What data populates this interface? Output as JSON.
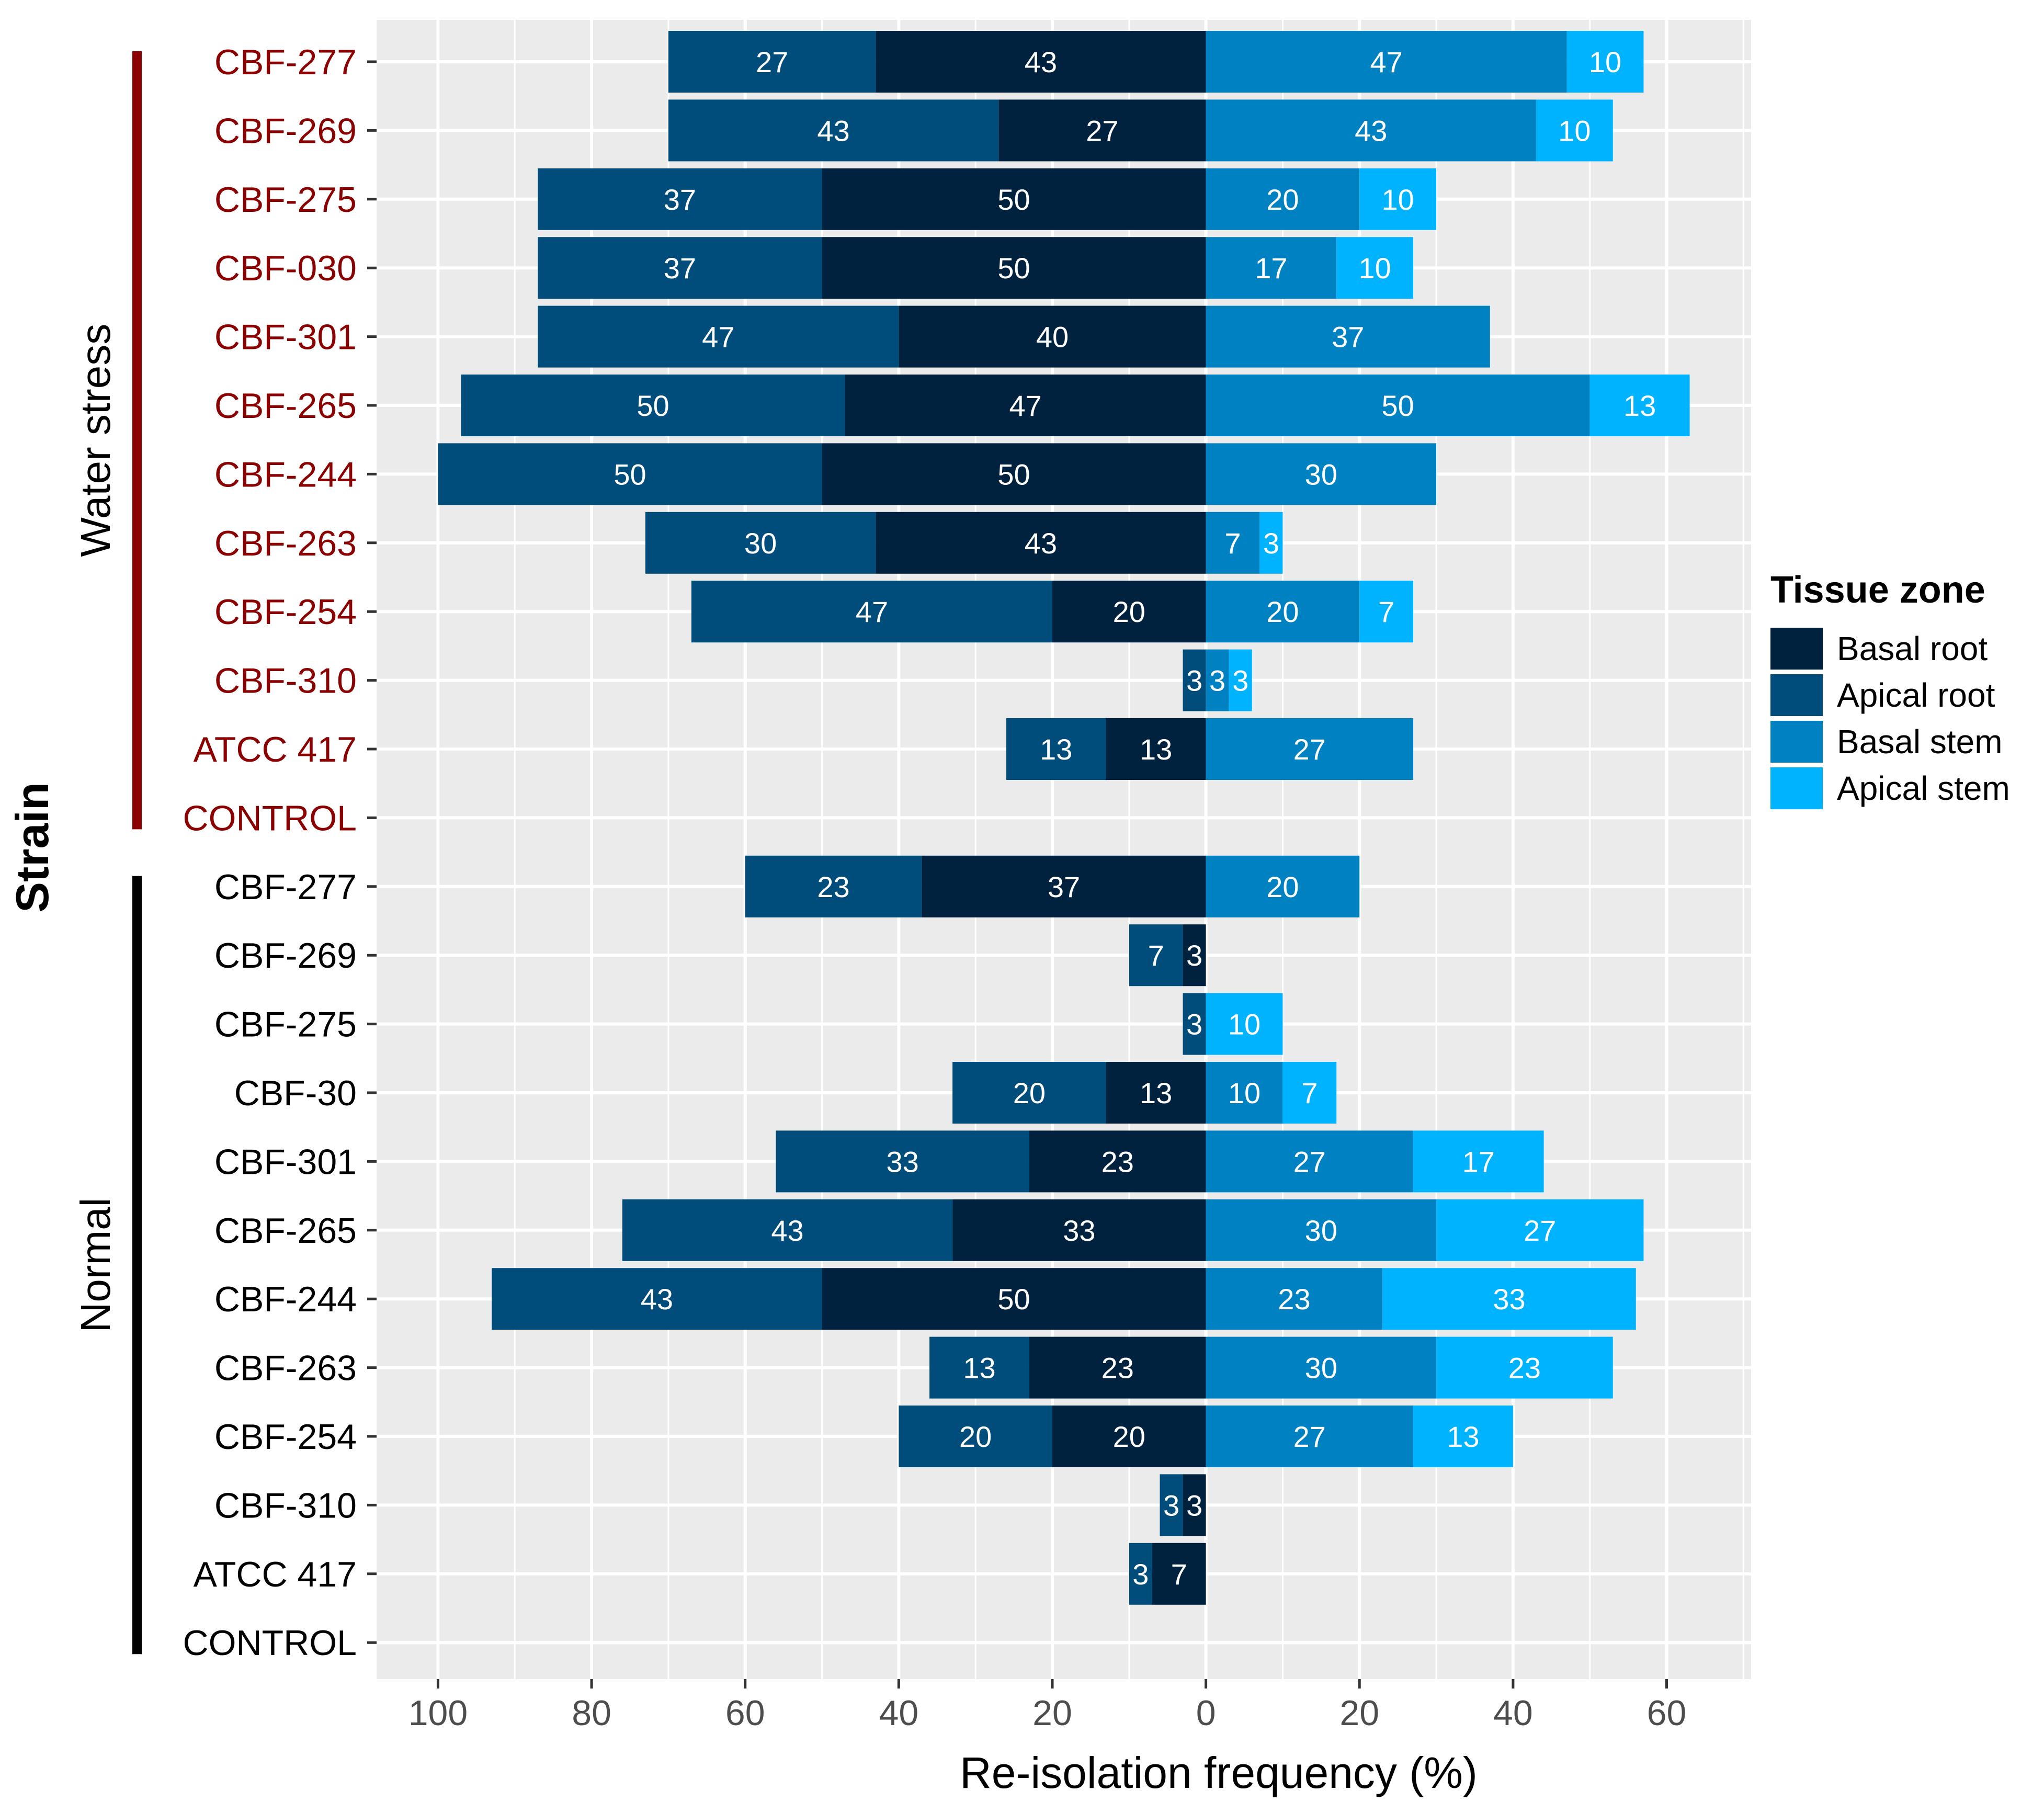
{
  "chart_data": {
    "type": "bar",
    "orientation": "horizontal-diverging",
    "xlabel": "Re-isolation frequency (%)",
    "ylabel": "Strain",
    "xlim": [
      -108,
      71
    ],
    "x_ticks": [
      -100,
      -80,
      -60,
      -40,
      -20,
      0,
      20,
      40,
      60
    ],
    "x_tick_labels": [
      "100",
      "80",
      "60",
      "40",
      "20",
      "0",
      "20",
      "40",
      "60"
    ],
    "grid": true,
    "legend": {
      "title": "Tissue zone",
      "position": "right",
      "entries": [
        {
          "name": "Basal root",
          "color": "#00223f"
        },
        {
          "name": "Apical root",
          "color": "#004c7a"
        },
        {
          "name": "Basal  stem",
          "color": "#0082c2"
        },
        {
          "name": "Apical stem",
          "color": "#00b3ff"
        }
      ]
    },
    "groups": [
      {
        "name": "Water stress",
        "label_color": "#8b0000",
        "bar_color": "#8b0000"
      },
      {
        "name": "Normal",
        "label_color": "#000000",
        "bar_color": "#000000"
      }
    ],
    "rows": [
      {
        "group": 0,
        "strain": "CBF-277",
        "basal_root": 43,
        "apical_root": 27,
        "basal_stem": 47,
        "apical_stem": 10
      },
      {
        "group": 0,
        "strain": "CBF-269",
        "basal_root": 27,
        "apical_root": 43,
        "basal_stem": 43,
        "apical_stem": 10
      },
      {
        "group": 0,
        "strain": "CBF-275",
        "basal_root": 50,
        "apical_root": 37,
        "basal_stem": 20,
        "apical_stem": 10
      },
      {
        "group": 0,
        "strain": "CBF-030",
        "basal_root": 50,
        "apical_root": 37,
        "basal_stem": 17,
        "apical_stem": 10
      },
      {
        "group": 0,
        "strain": "CBF-301",
        "basal_root": 40,
        "apical_root": 47,
        "basal_stem": 37,
        "apical_stem": 0
      },
      {
        "group": 0,
        "strain": "CBF-265",
        "basal_root": 47,
        "apical_root": 50,
        "basal_stem": 50,
        "apical_stem": 13
      },
      {
        "group": 0,
        "strain": "CBF-244",
        "basal_root": 50,
        "apical_root": 50,
        "basal_stem": 30,
        "apical_stem": 0
      },
      {
        "group": 0,
        "strain": "CBF-263",
        "basal_root": 43,
        "apical_root": 30,
        "basal_stem": 7,
        "apical_stem": 3
      },
      {
        "group": 0,
        "strain": "CBF-254",
        "basal_root": 20,
        "apical_root": 47,
        "basal_stem": 20,
        "apical_stem": 7
      },
      {
        "group": 0,
        "strain": "CBF-310",
        "basal_root": 0,
        "apical_root": 3,
        "basal_stem": 3,
        "apical_stem": 3
      },
      {
        "group": 0,
        "strain": "ATCC 417",
        "basal_root": 13,
        "apical_root": 13,
        "basal_stem": 27,
        "apical_stem": 0
      },
      {
        "group": 0,
        "strain": "CONTROL",
        "basal_root": 0,
        "apical_root": 0,
        "basal_stem": 0,
        "apical_stem": 0
      },
      {
        "group": 1,
        "strain": "CBF-277",
        "basal_root": 37,
        "apical_root": 23,
        "basal_stem": 20,
        "apical_stem": 0
      },
      {
        "group": 1,
        "strain": "CBF-269",
        "basal_root": 3,
        "apical_root": 7,
        "basal_stem": 0,
        "apical_stem": 0
      },
      {
        "group": 1,
        "strain": "CBF-275",
        "basal_root": 0,
        "apical_root": 3,
        "basal_stem": 0,
        "apical_stem": 10
      },
      {
        "group": 1,
        "strain": "CBF-30",
        "basal_root": 13,
        "apical_root": 20,
        "basal_stem": 10,
        "apical_stem": 7
      },
      {
        "group": 1,
        "strain": "CBF-301",
        "basal_root": 23,
        "apical_root": 33,
        "basal_stem": 27,
        "apical_stem": 17
      },
      {
        "group": 1,
        "strain": "CBF-265",
        "basal_root": 33,
        "apical_root": 43,
        "basal_stem": 30,
        "apical_stem": 27
      },
      {
        "group": 1,
        "strain": "CBF-244",
        "basal_root": 50,
        "apical_root": 43,
        "basal_stem": 23,
        "apical_stem": 33
      },
      {
        "group": 1,
        "strain": "CBF-263",
        "basal_root": 23,
        "apical_root": 13,
        "basal_stem": 30,
        "apical_stem": 23
      },
      {
        "group": 1,
        "strain": "CBF-254",
        "basal_root": 20,
        "apical_root": 20,
        "basal_stem": 27,
        "apical_stem": 13
      },
      {
        "group": 1,
        "strain": "CBF-310",
        "basal_root": 3,
        "apical_root": 3,
        "basal_stem": 0,
        "apical_stem": 0
      },
      {
        "group": 1,
        "strain": "ATCC 417",
        "basal_root": 7,
        "apical_root": 3,
        "basal_stem": 0,
        "apical_stem": 0
      },
      {
        "group": 1,
        "strain": "CONTROL",
        "basal_root": 0,
        "apical_root": 0,
        "basal_stem": 0,
        "apical_stem": 0
      }
    ]
  }
}
